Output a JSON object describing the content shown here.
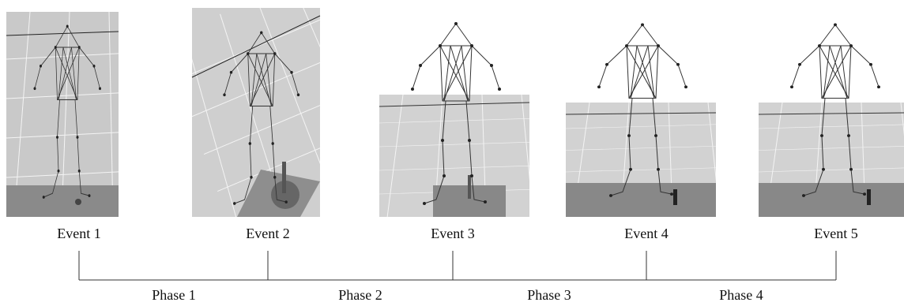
{
  "events": [
    {
      "label": "Event 1"
    },
    {
      "label": "Event 2"
    },
    {
      "label": "Event 3"
    },
    {
      "label": "Event 4"
    },
    {
      "label": "Event 5"
    }
  ],
  "phases": [
    {
      "label": "Phase 1"
    },
    {
      "label": "Phase 2"
    },
    {
      "label": "Phase 3"
    },
    {
      "label": "Phase 4"
    }
  ]
}
